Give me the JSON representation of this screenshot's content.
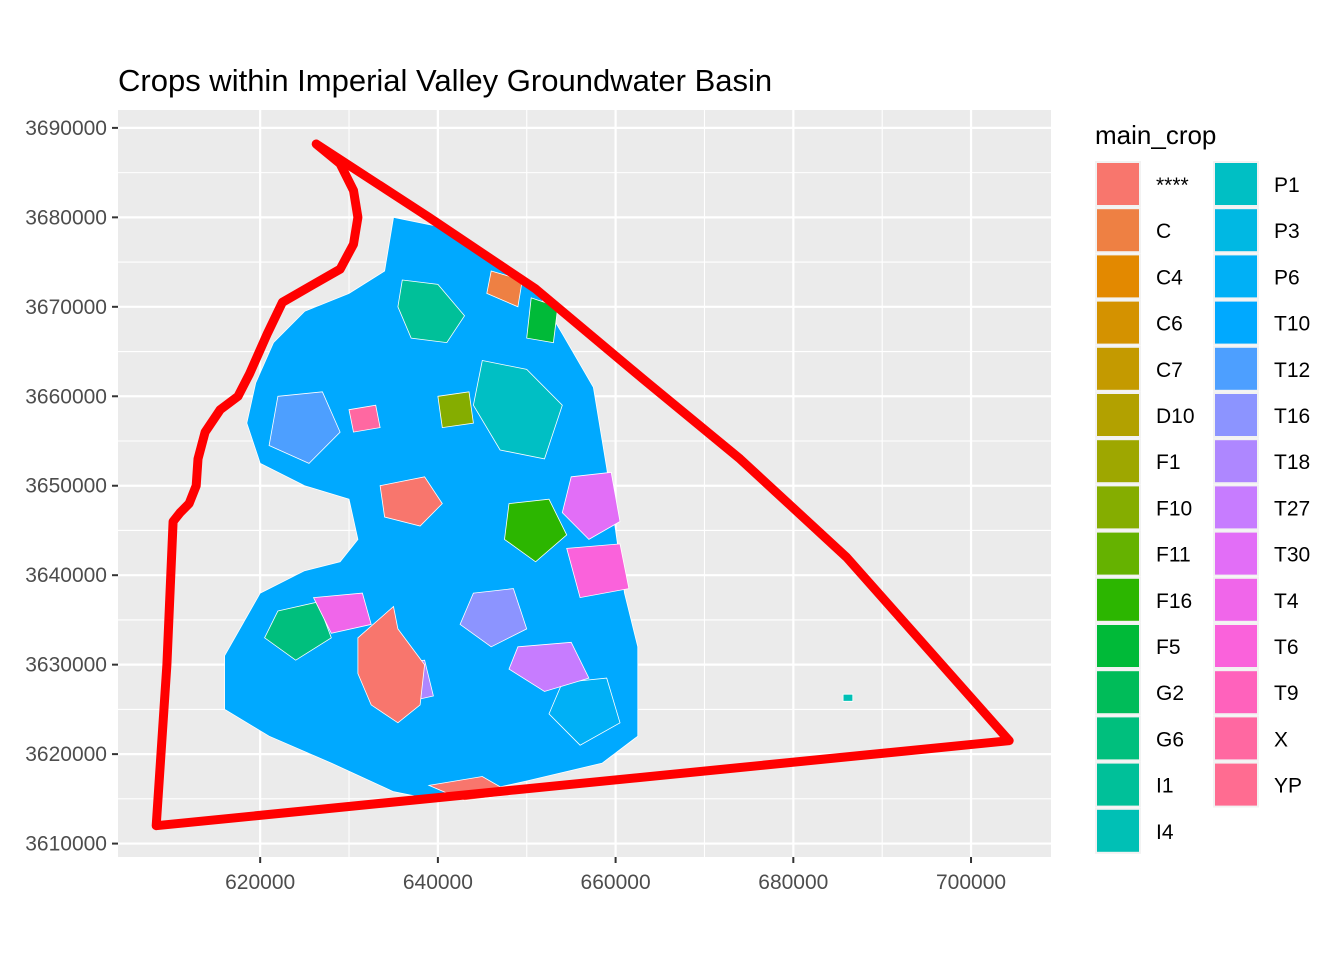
{
  "chart_data": {
    "type": "map",
    "title": "Crops within Imperial Valley Groundwater Basin",
    "x_ticks": [
      620000,
      640000,
      660000,
      680000,
      700000
    ],
    "y_ticks": [
      3610000,
      3620000,
      3630000,
      3640000,
      3650000,
      3660000,
      3670000,
      3680000,
      3690000
    ],
    "xlim": [
      604000,
      709000
    ],
    "ylim": [
      3608500,
      3692000
    ],
    "grid": true,
    "boundary_color": "#ff0000",
    "panel_background": "#ebebeb",
    "legend": {
      "title": "main_crop",
      "placement": "right",
      "columns": 2,
      "entries": [
        {
          "label": "****",
          "color": "#F8766D"
        },
        {
          "label": "C",
          "color": "#EE8043"
        },
        {
          "label": "C4",
          "color": "#E38900"
        },
        {
          "label": "C6",
          "color": "#D49200"
        },
        {
          "label": "C7",
          "color": "#C49A00"
        },
        {
          "label": "D10",
          "color": "#B2A100"
        },
        {
          "label": "F1",
          "color": "#9EA700"
        },
        {
          "label": "F10",
          "color": "#85AD00"
        },
        {
          "label": "F11",
          "color": "#65B200"
        },
        {
          "label": "F16",
          "color": "#2CB600"
        },
        {
          "label": "F5",
          "color": "#00BA38"
        },
        {
          "label": "G2",
          "color": "#00BC59"
        },
        {
          "label": "G6",
          "color": "#00BF7D"
        },
        {
          "label": "I1",
          "color": "#00C099"
        },
        {
          "label": "I4",
          "color": "#00C0B5"
        },
        {
          "label": "P1",
          "color": "#00BFC4"
        },
        {
          "label": "P3",
          "color": "#00B8E3"
        },
        {
          "label": "P6",
          "color": "#00B0F6"
        },
        {
          "label": "T10",
          "color": "#00A9FF"
        },
        {
          "label": "T12",
          "color": "#4D9FFF"
        },
        {
          "label": "T16",
          "color": "#8C94FF"
        },
        {
          "label": "T18",
          "color": "#AE87FF"
        },
        {
          "label": "T27",
          "color": "#C77CFF"
        },
        {
          "label": "T30",
          "color": "#E26EF7"
        },
        {
          "label": "T4",
          "color": "#F066EA"
        },
        {
          "label": "T6",
          "color": "#FA62DB"
        },
        {
          "label": "T9",
          "color": "#FF62BC"
        },
        {
          "label": "X",
          "color": "#FF68A1"
        },
        {
          "label": "YP",
          "color": "#FF6C91"
        }
      ]
    },
    "basin_boundary": [
      [
        626300,
        3688200
      ],
      [
        629000,
        3686000
      ],
      [
        630500,
        3683000
      ],
      [
        631000,
        3680000
      ],
      [
        630500,
        3677000
      ],
      [
        629000,
        3674200
      ],
      [
        626000,
        3672500
      ],
      [
        622500,
        3670500
      ],
      [
        620800,
        3667000
      ],
      [
        618800,
        3662500
      ],
      [
        617500,
        3660000
      ],
      [
        615500,
        3658500
      ],
      [
        613800,
        3656000
      ],
      [
        613000,
        3653000
      ],
      [
        612800,
        3650000
      ],
      [
        612000,
        3648000
      ],
      [
        611000,
        3647000
      ],
      [
        610200,
        3646000
      ],
      [
        609500,
        3630000
      ],
      [
        608300,
        3612000
      ],
      [
        704300,
        3621500
      ],
      [
        686000,
        3642000
      ],
      [
        674000,
        3653000
      ],
      [
        663000,
        3662000
      ],
      [
        651000,
        3672000
      ],
      [
        639000,
        3680000
      ],
      [
        626300,
        3688200
      ]
    ],
    "crop_regions": [
      {
        "crop": "T10",
        "polygon": [
          [
            635000,
            3680000
          ],
          [
            640000,
            3679000
          ],
          [
            646000,
            3675500
          ],
          [
            651000,
            3672000
          ],
          [
            654000,
            3667000
          ],
          [
            657500,
            3661000
          ],
          [
            659000,
            3652000
          ],
          [
            660000,
            3645000
          ],
          [
            661000,
            3638000
          ],
          [
            662500,
            3632000
          ],
          [
            662500,
            3622000
          ],
          [
            658500,
            3619000
          ],
          [
            650000,
            3617000
          ],
          [
            640000,
            3614800
          ],
          [
            635000,
            3615800
          ],
          [
            628000,
            3619000
          ],
          [
            621000,
            3622000
          ],
          [
            616000,
            3625000
          ],
          [
            616000,
            3631000
          ],
          [
            620000,
            3638000
          ],
          [
            625000,
            3640500
          ],
          [
            629000,
            3641500
          ],
          [
            631000,
            3644000
          ],
          [
            630000,
            3648500
          ],
          [
            625000,
            3650000
          ],
          [
            620000,
            3652500
          ],
          [
            618500,
            3657000
          ],
          [
            619500,
            3661500
          ],
          [
            621500,
            3666000
          ],
          [
            625000,
            3669500
          ],
          [
            630000,
            3671500
          ],
          [
            634000,
            3674000
          ],
          [
            635000,
            3680000
          ]
        ]
      },
      {
        "crop": "I1",
        "polygon": [
          [
            636000,
            3673000
          ],
          [
            640000,
            3672500
          ],
          [
            643000,
            3669000
          ],
          [
            641000,
            3666000
          ],
          [
            637000,
            3666500
          ],
          [
            635500,
            3670000
          ],
          [
            636000,
            3673000
          ]
        ]
      },
      {
        "crop": "P1",
        "polygon": [
          [
            645000,
            3664000
          ],
          [
            650000,
            3663000
          ],
          [
            654000,
            3659000
          ],
          [
            652000,
            3653000
          ],
          [
            647000,
            3654000
          ],
          [
            644000,
            3659000
          ],
          [
            645000,
            3664000
          ]
        ]
      },
      {
        "crop": "T12",
        "polygon": [
          [
            622000,
            3660000
          ],
          [
            627000,
            3660500
          ],
          [
            629000,
            3656000
          ],
          [
            625500,
            3652500
          ],
          [
            621000,
            3654500
          ],
          [
            622000,
            3660000
          ]
        ]
      },
      {
        "crop": "F16",
        "polygon": [
          [
            648000,
            3648000
          ],
          [
            652500,
            3648500
          ],
          [
            654500,
            3644500
          ],
          [
            651000,
            3641500
          ],
          [
            647500,
            3644000
          ],
          [
            648000,
            3648000
          ]
        ]
      },
      {
        "crop": "G6",
        "polygon": [
          [
            622000,
            3636000
          ],
          [
            626500,
            3637000
          ],
          [
            628000,
            3633000
          ],
          [
            624000,
            3630500
          ],
          [
            620500,
            3633000
          ],
          [
            622000,
            3636000
          ]
        ]
      },
      {
        "crop": "P6",
        "polygon": [
          [
            654000,
            3628000
          ],
          [
            659000,
            3628500
          ],
          [
            660500,
            3623500
          ],
          [
            656000,
            3621000
          ],
          [
            652500,
            3624500
          ],
          [
            654000,
            3628000
          ]
        ]
      },
      {
        "crop": "T16",
        "polygon": [
          [
            644000,
            3638000
          ],
          [
            648500,
            3638500
          ],
          [
            650000,
            3634000
          ],
          [
            646000,
            3632000
          ],
          [
            642500,
            3634500
          ],
          [
            644000,
            3638000
          ]
        ]
      },
      {
        "crop": "T27",
        "polygon": [
          [
            649000,
            3632000
          ],
          [
            655000,
            3632500
          ],
          [
            657000,
            3628500
          ],
          [
            652000,
            3627000
          ],
          [
            648000,
            3629500
          ],
          [
            649000,
            3632000
          ]
        ]
      },
      {
        "crop": "T30",
        "polygon": [
          [
            655000,
            3651000
          ],
          [
            659500,
            3651500
          ],
          [
            660500,
            3646000
          ],
          [
            657000,
            3644000
          ],
          [
            654000,
            3647000
          ],
          [
            655000,
            3651000
          ]
        ]
      },
      {
        "crop": "T4",
        "polygon": [
          [
            626000,
            3637500
          ],
          [
            631500,
            3638000
          ],
          [
            632500,
            3634500
          ],
          [
            628000,
            3633500
          ],
          [
            626000,
            3637500
          ]
        ]
      },
      {
        "crop": "T6",
        "polygon": [
          [
            654500,
            3643000
          ],
          [
            660500,
            3643500
          ],
          [
            661500,
            3638500
          ],
          [
            656000,
            3637500
          ],
          [
            654500,
            3643000
          ]
        ]
      },
      {
        "crop": "T18",
        "polygon": [
          [
            634000,
            3630000
          ],
          [
            638500,
            3630500
          ],
          [
            639500,
            3626500
          ],
          [
            635000,
            3625500
          ],
          [
            634000,
            3630000
          ]
        ]
      },
      {
        "crop": "F10",
        "polygon": [
          [
            640000,
            3660000
          ],
          [
            643500,
            3660500
          ],
          [
            644000,
            3657000
          ],
          [
            640500,
            3656500
          ],
          [
            640000,
            3660000
          ]
        ]
      },
      {
        "crop": "F5",
        "polygon": [
          [
            650500,
            3671000
          ],
          [
            653500,
            3670000
          ],
          [
            653000,
            3666000
          ],
          [
            650000,
            3666500
          ],
          [
            650500,
            3671000
          ]
        ]
      },
      {
        "crop": "C",
        "polygon": [
          [
            646000,
            3674000
          ],
          [
            649500,
            3673000
          ],
          [
            649000,
            3670000
          ],
          [
            645500,
            3671500
          ],
          [
            646000,
            3674000
          ]
        ]
      },
      {
        "crop": "I4",
        "polygon": [
          [
            685600,
            3626700
          ],
          [
            686700,
            3626700
          ],
          [
            686700,
            3625900
          ],
          [
            685600,
            3625900
          ],
          [
            685600,
            3626700
          ]
        ]
      },
      {
        "crop": "****",
        "polygon": [
          [
            633500,
            3650000
          ],
          [
            638500,
            3651000
          ],
          [
            640500,
            3648000
          ],
          [
            638000,
            3645500
          ],
          [
            634000,
            3646500
          ],
          [
            633500,
            3650000
          ]
        ]
      },
      {
        "crop": "****",
        "polygon": [
          [
            631000,
            3633000
          ],
          [
            635000,
            3636500
          ],
          [
            635500,
            3634000
          ],
          [
            638500,
            3630000
          ],
          [
            638000,
            3625500
          ],
          [
            635500,
            3623500
          ],
          [
            632500,
            3625500
          ],
          [
            631000,
            3629000
          ],
          [
            631000,
            3633000
          ]
        ]
      },
      {
        "crop": "****",
        "polygon": [
          [
            639000,
            3616500
          ],
          [
            645000,
            3617500
          ],
          [
            648500,
            3615500
          ],
          [
            643000,
            3614800
          ],
          [
            639000,
            3616500
          ]
        ]
      },
      {
        "crop": "X",
        "polygon": [
          [
            630000,
            3658500
          ],
          [
            633000,
            3659000
          ],
          [
            633500,
            3656500
          ],
          [
            630500,
            3656000
          ],
          [
            630000,
            3658500
          ]
        ]
      }
    ]
  }
}
